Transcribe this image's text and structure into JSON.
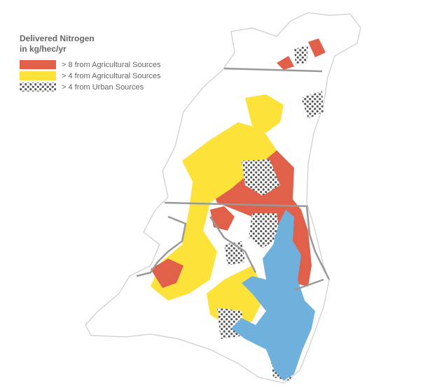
{
  "legend": {
    "title": [
      "Delivered Nitrogen",
      "in kg/hec/yr"
    ],
    "items": [
      {
        "label": "> 8 from Agricultural Sources",
        "color": "#e0604a"
      },
      {
        "label": "> 4 from Agricultural Sources",
        "color": "#fde23a"
      },
      {
        "label": "> 4 from Urban Sources",
        "color": "#555555",
        "pattern": "dots"
      }
    ]
  }
}
